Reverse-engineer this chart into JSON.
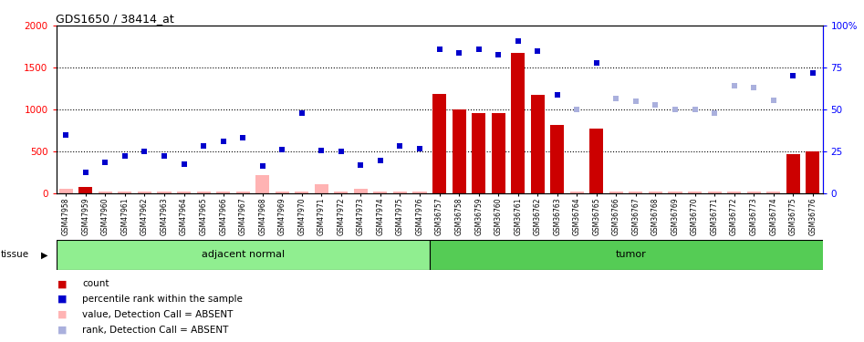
{
  "title": "GDS1650 / 38414_at",
  "samples": [
    "GSM47958",
    "GSM47959",
    "GSM47960",
    "GSM47961",
    "GSM47962",
    "GSM47963",
    "GSM47964",
    "GSM47965",
    "GSM47966",
    "GSM47967",
    "GSM47968",
    "GSM47969",
    "GSM47970",
    "GSM47971",
    "GSM47972",
    "GSM47973",
    "GSM47974",
    "GSM47975",
    "GSM47976",
    "GSM36757",
    "GSM36758",
    "GSM36759",
    "GSM36760",
    "GSM36761",
    "GSM36762",
    "GSM36763",
    "GSM36764",
    "GSM36765",
    "GSM36766",
    "GSM36767",
    "GSM36768",
    "GSM36769",
    "GSM36770",
    "GSM36771",
    "GSM36772",
    "GSM36773",
    "GSM36774",
    "GSM36775",
    "GSM36776"
  ],
  "count_values": [
    55,
    70,
    20,
    15,
    20,
    15,
    20,
    15,
    15,
    15,
    220,
    15,
    15,
    110,
    15,
    50,
    15,
    15,
    15,
    1180,
    1000,
    960,
    960,
    1680,
    1170,
    820,
    15,
    770,
    15,
    15,
    15,
    15,
    15,
    15,
    15,
    15,
    15,
    465,
    500
  ],
  "count_absent": [
    true,
    false,
    true,
    true,
    true,
    true,
    true,
    true,
    true,
    true,
    true,
    true,
    true,
    true,
    true,
    true,
    true,
    true,
    true,
    false,
    false,
    false,
    false,
    false,
    false,
    false,
    true,
    false,
    true,
    true,
    true,
    true,
    true,
    true,
    true,
    true,
    true,
    false,
    false
  ],
  "rank_values_pct": [
    35,
    12.5,
    18.5,
    22.5,
    25,
    22.5,
    17.5,
    28.5,
    31,
    33,
    16,
    26,
    48,
    25.5,
    25,
    17,
    19.5,
    28,
    26.5,
    86,
    84,
    86,
    82.5,
    91,
    85,
    58.5,
    50,
    78,
    56.5,
    55,
    52.5,
    50,
    50,
    48,
    64,
    63,
    55.5,
    70,
    71.5
  ],
  "rank_absent": [
    false,
    false,
    false,
    false,
    false,
    false,
    false,
    false,
    false,
    false,
    false,
    false,
    false,
    false,
    false,
    false,
    false,
    false,
    false,
    false,
    false,
    false,
    false,
    false,
    false,
    false,
    true,
    false,
    true,
    true,
    true,
    true,
    true,
    true,
    true,
    true,
    true,
    false,
    false
  ],
  "n_adjacent": 19,
  "n_tumor": 20,
  "ylim_left": [
    0,
    2000
  ],
  "ylim_right": [
    0,
    100
  ],
  "bar_color_present": "#cc0000",
  "bar_color_absent": "#ffb3b3",
  "rank_color_present": "#0000cc",
  "rank_color_absent": "#aab0dd",
  "adjacent_label": "adjacent normal",
  "tumor_label": "tumor",
  "adjacent_bg": "#90ee90",
  "tumor_bg": "#55cc55",
  "legend_count": "count",
  "legend_rank": "percentile rank within the sample",
  "legend_val_absent": "value, Detection Call = ABSENT",
  "legend_rank_absent": "rank, Detection Call = ABSENT"
}
